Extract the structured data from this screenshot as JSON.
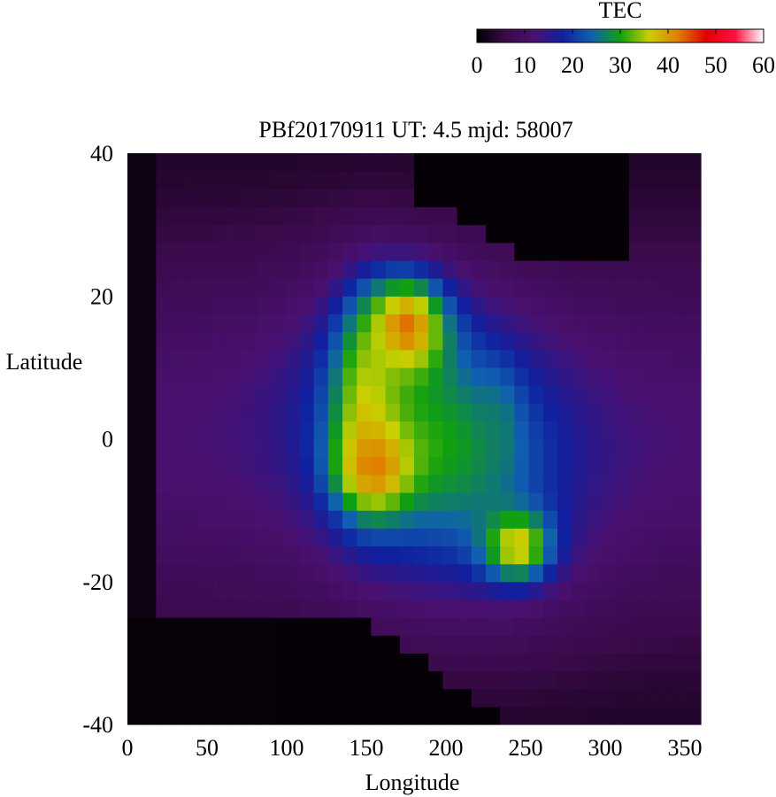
{
  "chart_data": {
    "type": "heatmap",
    "title": "PBf20170911  UT: 4.5  mjd: 58007",
    "xlabel": "Longitude",
    "ylabel": "Latitude",
    "xlim": [
      0,
      360
    ],
    "ylim": [
      -40,
      40
    ],
    "x_ticks": [
      "0",
      "50",
      "100",
      "150",
      "200",
      "250",
      "300",
      "350"
    ],
    "y_ticks": [
      "40",
      "20",
      "0",
      "-20",
      "-40"
    ],
    "colorbar": {
      "label": "TEC",
      "range": [
        0,
        60
      ],
      "ticks": [
        "0",
        "10",
        "20",
        "30",
        "40",
        "50",
        "60"
      ],
      "colormap": [
        "#000000",
        "#3a0a4a",
        "#4a1070",
        "#1020a0",
        "#1060b0",
        "#10a010",
        "#c8d000",
        "#e08000",
        "#e00000",
        "#ff1040",
        "#ffffff"
      ]
    },
    "grid": false,
    "cells": {
      "lon_step": 9,
      "lat_step": 2.5
    },
    "zero_regions": [
      {
        "name": "top-right",
        "lon_range": [
          180,
          315
        ],
        "lat_center": 40
      },
      {
        "name": "bottom",
        "lon_range": [
          0,
          245
        ],
        "lat_center": -40
      },
      {
        "name": "west-edge",
        "lon_range": [
          0,
          20
        ]
      }
    ],
    "features": [
      {
        "name": "northern-peak",
        "lon": 175,
        "lat": 16,
        "tec": 47,
        "spread_lon": 26,
        "spread_lat": 7
      },
      {
        "name": "central-ridge",
        "lon": 150,
        "lat": 5,
        "tec": 38,
        "spread_lon": 22,
        "spread_lat": 14
      },
      {
        "name": "southern-peak",
        "lon": 155,
        "lat": -4,
        "tec": 44,
        "spread_lon": 24,
        "spread_lat": 6
      },
      {
        "name": "southeast-peak",
        "lon": 245,
        "lat": -15,
        "tec": 41,
        "spread_lon": 22,
        "spread_lat": 5
      },
      {
        "name": "eastern-trough",
        "lon": 232,
        "lat": 1,
        "tec": 27,
        "spread_lon": 14,
        "spread_lat": 8
      }
    ]
  }
}
